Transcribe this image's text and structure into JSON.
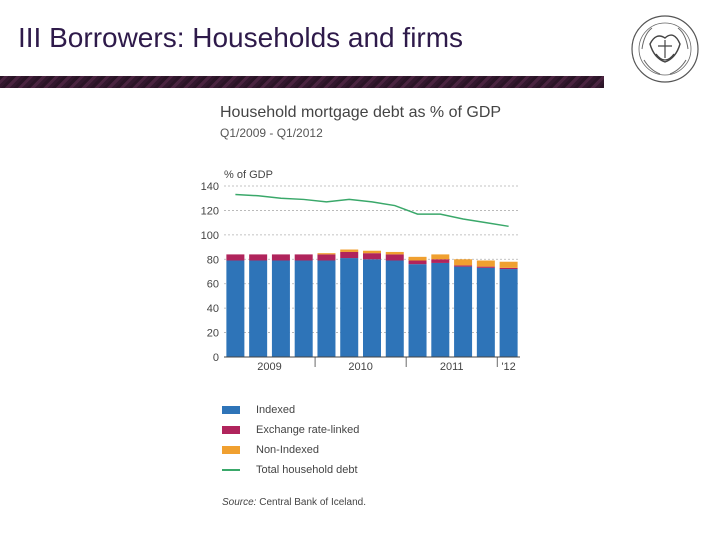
{
  "slide": {
    "title": "III Borrowers: Households and firms"
  },
  "colors": {
    "indexed": "#2e74b8",
    "exchange": "#b0245c",
    "nonindexed": "#f0a030",
    "total": "#3aa86a",
    "grid": "#b0b0b0"
  },
  "chart_data": {
    "type": "bar",
    "title": "Household mortgage debt as % of GDP",
    "subtitle": "Q1/2009 - Q1/2012",
    "ylabel": "% of GDP",
    "ylim": [
      0,
      140
    ],
    "yticks": [
      "0",
      "20",
      "40",
      "60",
      "80",
      "100",
      "120",
      "140"
    ],
    "xtick_labels": [
      "2009",
      "2010",
      "2011",
      "'12"
    ],
    "categories": [
      "Q1/2009",
      "Q2/2009",
      "Q3/2009",
      "Q4/2009",
      "Q1/2010",
      "Q2/2010",
      "Q3/2010",
      "Q4/2010",
      "Q1/2011",
      "Q2/2011",
      "Q3/2011",
      "Q4/2011",
      "Q1/2012"
    ],
    "stacked": true,
    "grid": true,
    "series": [
      {
        "name": "Indexed",
        "values": [
          79,
          79,
          79,
          79,
          79,
          81,
          80,
          79,
          76,
          77,
          74,
          73,
          72
        ]
      },
      {
        "name": "Exchange rate-linked",
        "values": [
          5,
          5,
          5,
          5,
          5,
          5,
          5,
          5,
          3,
          3,
          1,
          1,
          1
        ]
      },
      {
        "name": "Non-Indexed",
        "values": [
          0,
          0,
          0,
          0,
          1,
          2,
          2,
          2,
          3,
          4,
          5,
          5,
          5
        ]
      }
    ],
    "line_series": {
      "name": "Total household debt",
      "values": [
        133,
        132,
        130,
        129,
        127,
        129,
        127,
        124,
        117,
        117,
        113,
        110,
        107
      ]
    },
    "legend": [
      "Indexed",
      "Exchange rate-linked",
      "Non-Indexed",
      "Total household debt"
    ],
    "source_prefix": "Source:",
    "source_text": "Central Bank of Iceland."
  }
}
